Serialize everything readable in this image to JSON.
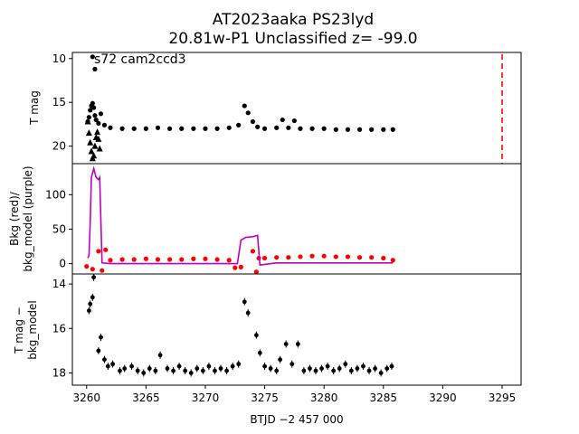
{
  "title_line1": "AT2023aaka  PS23lyd",
  "title_line2": "20.81w-P1 Unclassified z= -99.0",
  "xlabel": "BTJD −2 457 000",
  "chart_data": [
    {
      "type": "scatter",
      "panel": "top",
      "ylabel": "T mag",
      "ylim": [
        22,
        9.3
      ],
      "yticks": [
        10,
        15,
        20
      ],
      "annotation": "s72 cam2ccd3",
      "vline_x": 3295,
      "vline_color": "#ff0000",
      "marker_color": "#000000",
      "series": [
        {
          "role": "detections",
          "marker": "dot",
          "x": [
            3260.1,
            3260.2,
            3260.3,
            3260.4,
            3260.5,
            3260.6,
            3260.7,
            3260.8,
            3261.0,
            3261.2,
            3261.5,
            3262,
            3263,
            3264,
            3265,
            3266,
            3267,
            3268,
            3269,
            3270,
            3271,
            3272,
            3272.8,
            3273.3,
            3273.6,
            3274.0,
            3274.4,
            3275,
            3276,
            3276.5,
            3277,
            3277.5,
            3278,
            3279,
            3280,
            3281,
            3282,
            3283,
            3284,
            3285,
            3285.8
          ],
          "y": [
            17.2,
            16.7,
            15.9,
            15.4,
            15.1,
            15.6,
            16.5,
            17.0,
            17.4,
            16.3,
            17.6,
            17.9,
            18.0,
            18.0,
            18.0,
            17.9,
            18.0,
            18.0,
            18.0,
            18.0,
            18.0,
            17.9,
            17.6,
            15.4,
            16.2,
            17.2,
            17.8,
            18.0,
            17.9,
            17.0,
            17.9,
            17.1,
            18.0,
            18.0,
            18.0,
            18.1,
            18.1,
            18.1,
            18.1,
            18.1,
            18.1
          ]
        },
        {
          "role": "upper_limits",
          "marker": "triangle",
          "x": [
            3260.1,
            3260.2,
            3260.3,
            3260.4,
            3260.5,
            3260.6,
            3260.7,
            3260.8,
            3260.9,
            3261.0,
            3261.1
          ],
          "y": [
            17.2,
            18.5,
            19.6,
            20.6,
            21.4,
            21.1,
            20.0,
            19.0,
            18.4,
            19.2,
            20.3
          ]
        },
        {
          "role": "bright_points",
          "marker": "dot",
          "x": [
            3260.5,
            3260.7
          ],
          "y": [
            9.8,
            11.2
          ]
        }
      ]
    },
    {
      "type": "line",
      "panel": "middle",
      "ylabel_line1": "Bkg (red)/",
      "ylabel_line2": "bkg_model (purple)",
      "ylim": [
        -15,
        145
      ],
      "yticks": [
        0,
        50,
        100
      ],
      "series": [
        {
          "role": "bkg",
          "color": "#ff0000",
          "marker": "dot",
          "x": [
            3260,
            3260.5,
            3261,
            3261.3,
            3261.6,
            3262,
            3263,
            3264,
            3265,
            3266,
            3267,
            3268,
            3269,
            3270,
            3271,
            3272,
            3272.5,
            3273,
            3274,
            3274.3,
            3274.5,
            3275,
            3276,
            3277,
            3278,
            3279,
            3280,
            3281,
            3282,
            3283,
            3284,
            3285,
            3285.8
          ],
          "y": [
            -4,
            -8,
            18,
            -10,
            20,
            5,
            6,
            6,
            7,
            6,
            6,
            6,
            7,
            7,
            6,
            5,
            -6,
            -5,
            18,
            -12,
            8,
            8,
            9,
            9,
            10,
            11,
            11,
            10,
            10,
            9,
            9,
            8,
            5
          ]
        },
        {
          "role": "model",
          "color": "#c000c0",
          "x": [
            3260.1,
            3260.2,
            3260.3,
            3260.4,
            3260.6,
            3260.8,
            3261.0,
            3261.1,
            3261.3,
            3262,
            3265,
            3270,
            3272.7,
            3273.0,
            3273.4,
            3274.0,
            3274.4,
            3274.6,
            3276,
            3280,
            3285.8
          ],
          "y": [
            8,
            12,
            58,
            125,
            138,
            125,
            122,
            125,
            1,
            0,
            0,
            0,
            0,
            34,
            38,
            39,
            41,
            -2,
            1,
            1,
            1
          ]
        }
      ]
    },
    {
      "type": "scatter",
      "panel": "bottom",
      "ylabel_line1": "T mag −",
      "ylabel_line2": "bkg_model",
      "ylim": [
        18.55,
        13.55
      ],
      "yticks": [
        14,
        16,
        18
      ],
      "marker_color": "#000000",
      "x": [
        3260.2,
        3260.3,
        3260.5,
        3260.6,
        3261.0,
        3261.2,
        3261.5,
        3261.8,
        3262.2,
        3262.8,
        3263.2,
        3263.8,
        3264.3,
        3264.8,
        3265.3,
        3265.8,
        3266.2,
        3266.8,
        3267.3,
        3267.8,
        3268.3,
        3268.8,
        3269.3,
        3269.8,
        3270.3,
        3270.8,
        3271.3,
        3271.8,
        3272.3,
        3272.8,
        3273.3,
        3273.6,
        3274.3,
        3274.6,
        3275.0,
        3275.5,
        3276.0,
        3276.3,
        3276.8,
        3277.3,
        3277.8,
        3278.3,
        3278.8,
        3279.3,
        3279.8,
        3280.3,
        3280.8,
        3281.3,
        3281.8,
        3282.3,
        3282.8,
        3283.3,
        3283.8,
        3284.3,
        3284.8,
        3285.3,
        3285.7
      ],
      "y": [
        15.2,
        14.9,
        14.6,
        13.7,
        17.0,
        16.4,
        17.4,
        17.7,
        17.6,
        17.9,
        17.8,
        17.7,
        17.9,
        18.0,
        17.8,
        17.9,
        17.2,
        17.8,
        17.9,
        17.7,
        17.9,
        18.0,
        17.8,
        17.9,
        17.7,
        17.9,
        17.8,
        17.9,
        17.7,
        17.6,
        14.8,
        15.3,
        16.3,
        17.1,
        17.7,
        17.8,
        17.9,
        17.4,
        16.7,
        17.6,
        16.7,
        17.9,
        17.8,
        17.9,
        17.8,
        17.7,
        17.9,
        17.8,
        17.6,
        17.9,
        17.8,
        17.7,
        17.9,
        17.8,
        18.0,
        17.8,
        17.7
      ]
    }
  ],
  "xaxis": {
    "xlim": [
      3258.8,
      3296.6
    ],
    "ticks": [
      3260,
      3265,
      3270,
      3275,
      3280,
      3285,
      3290,
      3295
    ]
  }
}
